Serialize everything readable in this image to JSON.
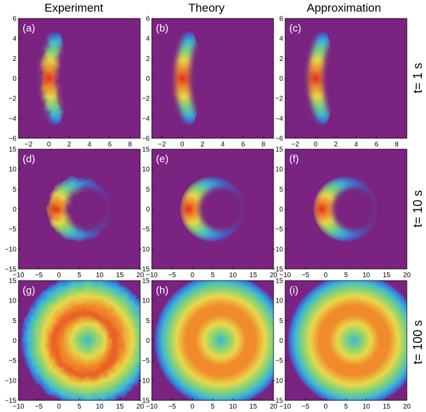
{
  "chart_data": {
    "type": "heatmap",
    "column_titles": [
      "Experiment",
      "Theory",
      "Approximation"
    ],
    "row_titles": [
      "t= 1 s",
      "t= 10 s",
      "t= 100 s"
    ],
    "background_color": "#7a2380",
    "colormap": [
      "#7a2380",
      "#3a6fd8",
      "#3fb7d2",
      "#7fd27a",
      "#e8d84a",
      "#f08a2a",
      "#e0301c"
    ],
    "rows": [
      {
        "title": "t= 1 s",
        "xlim": [
          -3,
          9
        ],
        "ylim": [
          -6,
          6
        ],
        "xticks": [
          -2,
          0,
          2,
          4,
          6,
          8
        ],
        "yticks": [
          -6,
          -4,
          -2,
          0,
          2,
          4,
          6
        ],
        "panels": [
          {
            "label": "(a)",
            "column": "Experiment",
            "shape": "crescent",
            "center": [
              0,
              0
            ],
            "inner_radius": 11,
            "outer_radius": 13,
            "x_shift": 13,
            "noisy": true
          },
          {
            "label": "(b)",
            "column": "Theory",
            "shape": "crescent",
            "center": [
              0,
              0
            ],
            "inner_radius": 11,
            "outer_radius": 13,
            "x_shift": 13,
            "noisy": false
          },
          {
            "label": "(c)",
            "column": "Approximation",
            "shape": "crescent",
            "center": [
              0,
              0
            ],
            "inner_radius": 11,
            "outer_radius": 13,
            "x_shift": 13,
            "noisy": false
          }
        ]
      },
      {
        "title": "t= 10 s",
        "xlim": [
          -10,
          20
        ],
        "ylim": [
          -15,
          15
        ],
        "xticks": [
          -10,
          -5,
          0,
          5,
          10,
          15,
          20
        ],
        "yticks": [
          -15,
          -10,
          -5,
          0,
          5,
          10,
          15
        ],
        "panels": [
          {
            "label": "(d)",
            "column": "Experiment",
            "shape": "crescent",
            "center": [
              5,
              0
            ],
            "ring_radius": 7,
            "noisy": true
          },
          {
            "label": "(e)",
            "column": "Theory",
            "shape": "crescent",
            "center": [
              5,
              0
            ],
            "ring_radius": 7,
            "noisy": false
          },
          {
            "label": "(f)",
            "column": "Approximation",
            "shape": "crescent",
            "center": [
              5,
              0
            ],
            "ring_radius": 7,
            "noisy": false
          }
        ]
      },
      {
        "title": "t= 100 s",
        "xlim": [
          -10,
          20
        ],
        "ylim": [
          -15,
          15
        ],
        "xticks": [
          -10,
          -5,
          0,
          5,
          10,
          15,
          20
        ],
        "yticks": [
          -15,
          -10,
          -5,
          0,
          5,
          10,
          15
        ],
        "panels": [
          {
            "label": "(g)",
            "column": "Experiment",
            "shape": "ring",
            "center": [
              7,
              0
            ],
            "ring_radius": 8,
            "noisy": true
          },
          {
            "label": "(h)",
            "column": "Theory",
            "shape": "ring",
            "center": [
              7,
              0
            ],
            "ring_radius": 8,
            "noisy": false
          },
          {
            "label": "(i)",
            "column": "Approximation",
            "shape": "ring",
            "center": [
              7,
              0
            ],
            "ring_radius": 8,
            "noisy": false
          }
        ]
      }
    ]
  }
}
